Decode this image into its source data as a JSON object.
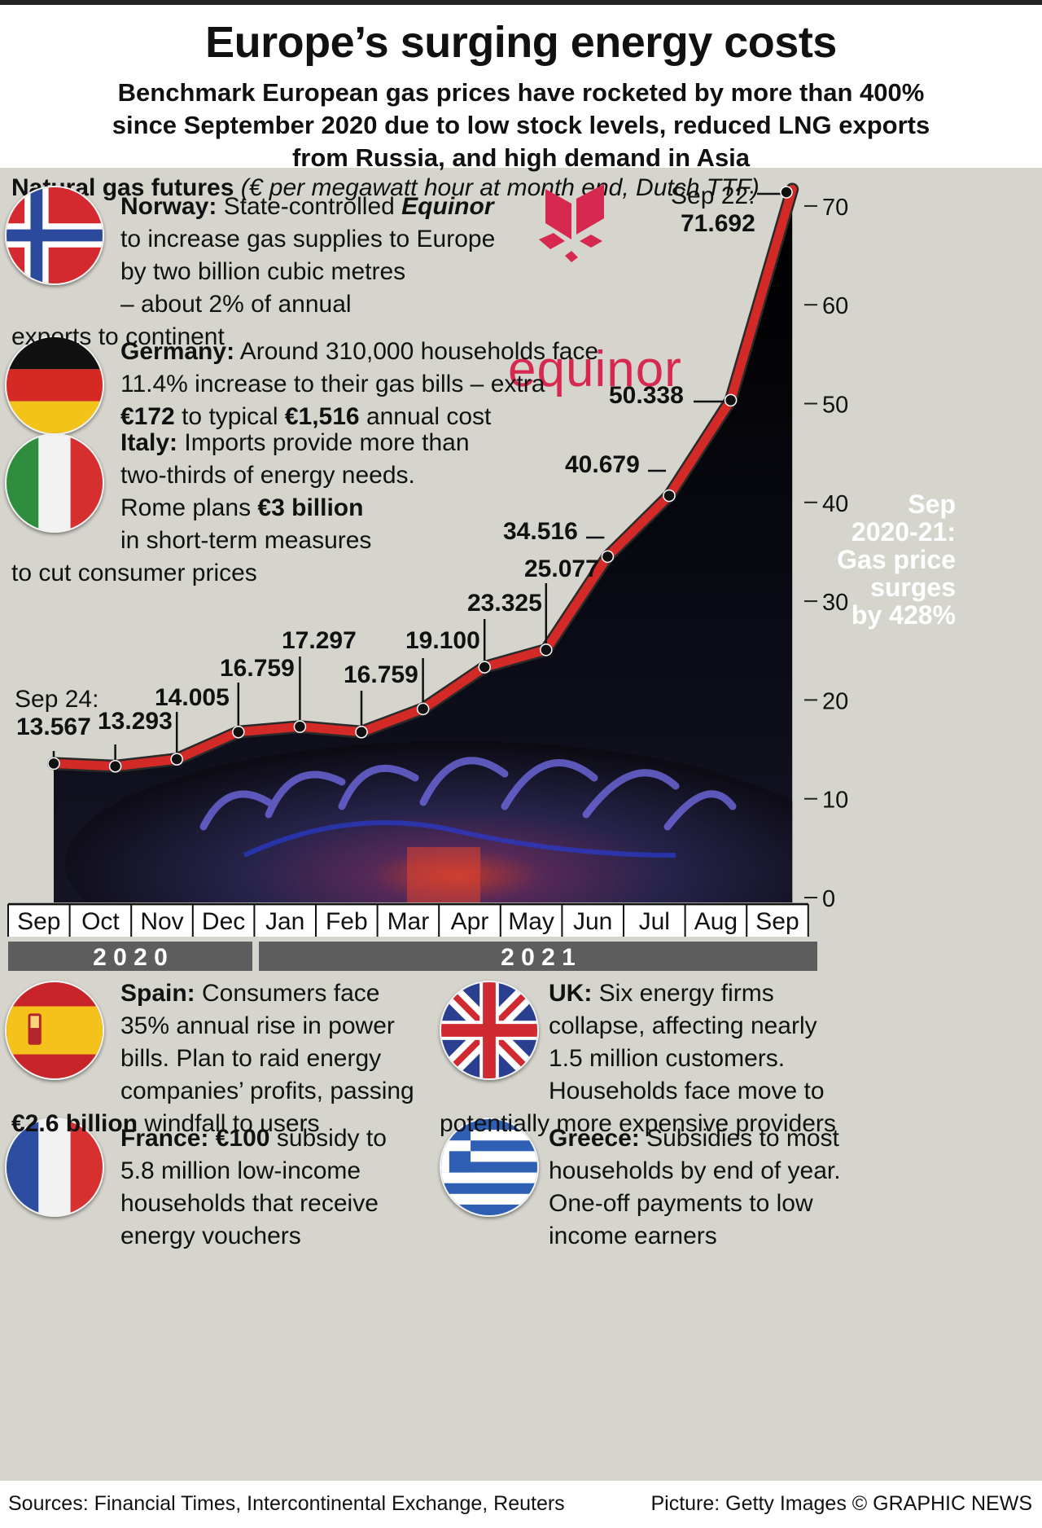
{
  "header": {
    "title": "Europe’s surging energy costs",
    "subtitle_lines": [
      "Benchmark European gas prices have rocketed by more than 400%",
      "since September 2020 due to low stock levels, reduced LNG exports",
      "from Russia, and high demand in Asia"
    ]
  },
  "chart_label": {
    "bold": "Natural gas futures",
    "italic": "(€ per megawatt hour at month end, Dutch TTF)"
  },
  "notes": {
    "norway": {
      "head": "Norway:",
      "l1_a": "State-controlled",
      "l1_b": "Equinor",
      "l2": "to increase gas supplies to Europe",
      "l3": "by two billion cubic metres",
      "l4": "– about 2% of annual",
      "l5": "exports to continent"
    },
    "germany": {
      "head": "Germany:",
      "l1": "Around 310,000 households face",
      "l2": "11.4% increase to their gas bills – extra",
      "l3_a": "€172",
      "l3_b": "to typical",
      "l3_c": "€1,516",
      "l3_d": "annual cost"
    },
    "italy": {
      "head": "Italy:",
      "l1": "Imports provide more than",
      "l2": "two-thirds of energy needs.",
      "l3_a": "Rome plans",
      "l3_b": "€3 billion",
      "l4": "in short-term measures",
      "l5": "to cut consumer prices"
    },
    "spain": {
      "head": "Spain:",
      "l1": "Consumers face",
      "l2": "35% annual rise in power",
      "l3": "bills. Plan to raid energy",
      "l4": "companies’ profits, passing",
      "l5_a": "€2.6 billion",
      "l5_b": "windfall to users"
    },
    "france": {
      "head": "France:",
      "l1_a": "€100",
      "l1_b": "subsidy to",
      "l2": "5.8 million low-income",
      "l3": "households that receive",
      "l4": "energy vouchers"
    },
    "uk": {
      "head": "UK:",
      "l1": "Six energy firms",
      "l2": "collapse, affecting nearly",
      "l3": "1.5 million customers.",
      "l4": "Households face move to",
      "l5": "potentially more expensive providers"
    },
    "greece": {
      "head": "Greece:",
      "l1": "Subsidies to most",
      "l2": "households by end of year.",
      "l3": "One-off payments to low",
      "l4": "income earners"
    }
  },
  "equinor_logo_text": "equinor",
  "surge_note": [
    "Sep",
    "2020-21:",
    "Gas price",
    "surges",
    "by 428%"
  ],
  "chart_data": {
    "type": "line",
    "categories": [
      "Sep",
      "Oct",
      "Nov",
      "Dec",
      "Jan",
      "Feb",
      "Mar",
      "Apr",
      "May",
      "Jun",
      "Jul",
      "Aug",
      "Sep"
    ],
    "values": [
      13.567,
      13.293,
      14.005,
      16.759,
      17.297,
      16.759,
      19.1,
      23.325,
      25.077,
      34.516,
      40.679,
      50.338,
      71.692
    ],
    "value_labels": [
      {
        "prefix": "Sep 24:",
        "text": "13.567"
      },
      {
        "text": "13.293"
      },
      {
        "text": "14.005"
      },
      {
        "text": "16.759"
      },
      {
        "text": "17.297"
      },
      {
        "text": "16.759"
      },
      {
        "text": "19.100"
      },
      {
        "text": "23.325"
      },
      {
        "text": "25.077"
      },
      {
        "text": "34.516"
      },
      {
        "text": "40.679"
      },
      {
        "text": "50.338"
      },
      {
        "prefix": "Sep 22:",
        "text": "71.692"
      }
    ],
    "years": [
      "2 0 2 0",
      "2 0 2 1"
    ],
    "y_ticks": [
      0,
      10,
      20,
      30,
      40,
      50,
      60,
      70
    ],
    "ylim": [
      0,
      72
    ],
    "line_color": "#d42a27",
    "axis_position": "right"
  },
  "sources": {
    "left": "Sources: Financial Times, Intercontinental Exchange, Reuters",
    "right": "Picture: Getty Images  © GRAPHIC NEWS"
  }
}
